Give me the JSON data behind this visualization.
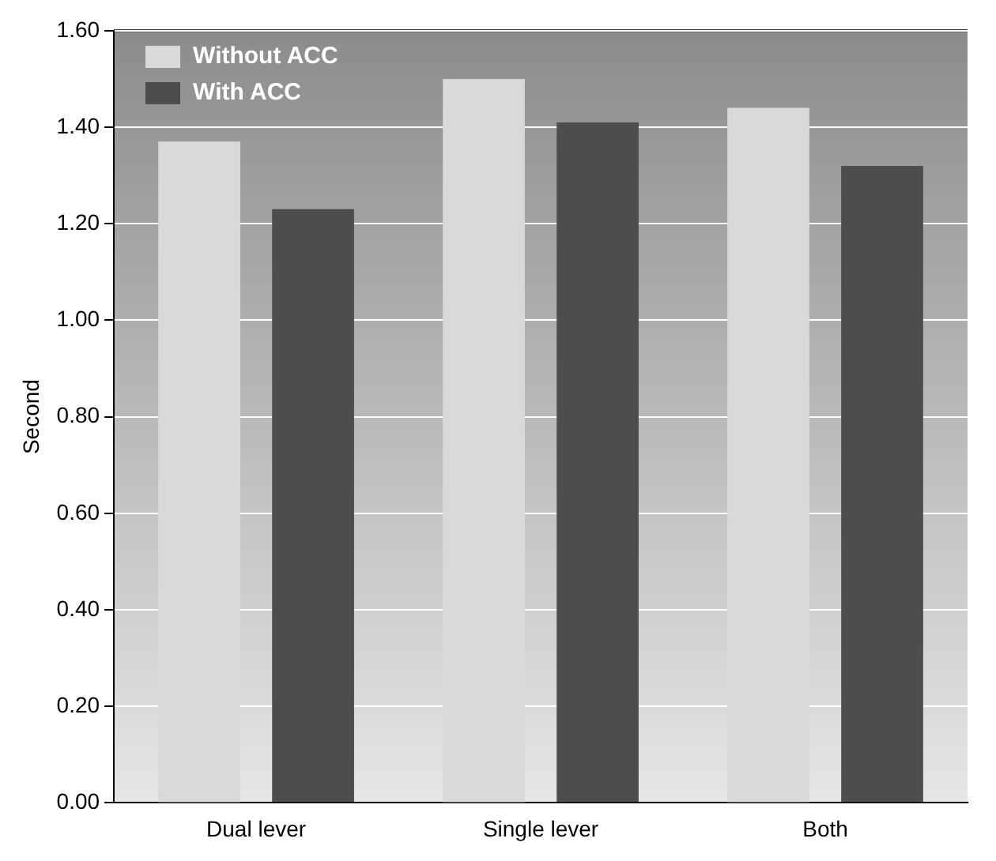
{
  "chart_data": {
    "type": "bar",
    "ylabel": "Second",
    "categories": [
      "Dual lever",
      "Single lever",
      "Both"
    ],
    "series": [
      {
        "name": "Without ACC",
        "color": "#d9d9d9",
        "values": [
          1.37,
          1.5,
          1.44
        ]
      },
      {
        "name": "With ACC",
        "color": "#4d4d4d",
        "values": [
          1.23,
          1.41,
          1.32
        ]
      }
    ],
    "ylim": [
      0,
      1.6
    ],
    "yticks": [
      {
        "value": 0,
        "label": "0.00"
      },
      {
        "value": 0.2,
        "label": "0.20"
      },
      {
        "value": 0.4,
        "label": "0.40"
      },
      {
        "value": 0.6,
        "label": "0.60"
      },
      {
        "value": 0.8,
        "label": "0.80"
      },
      {
        "value": 1.0,
        "label": "1.00"
      },
      {
        "value": 1.2,
        "label": "1.20"
      },
      {
        "value": 1.4,
        "label": "1.40"
      },
      {
        "value": 1.6,
        "label": "1.60"
      }
    ],
    "grid": "y",
    "legend": "top left"
  }
}
